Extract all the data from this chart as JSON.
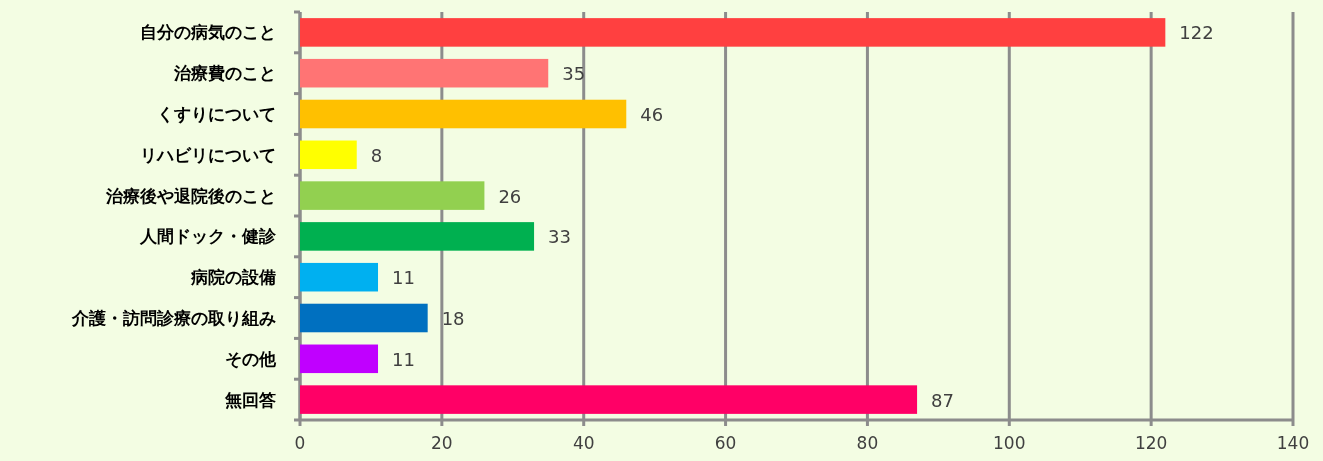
{
  "chart_data": {
    "type": "bar",
    "orientation": "horizontal",
    "categories": [
      "自分の病気のこと",
      "治療費のこと",
      "くすりについて",
      "リハビリについて",
      "治療後や退院後のこと",
      "人間ドック・健診",
      "病院の設備",
      "介護・訪問診療の取り組み",
      "その他",
      "無回答"
    ],
    "values": [
      122,
      35,
      46,
      8,
      26,
      33,
      11,
      18,
      11,
      87
    ],
    "colors": [
      "#ff4040",
      "#ff7474",
      "#ffc000",
      "#ffff00",
      "#92d050",
      "#00b050",
      "#00b0f0",
      "#0070c0",
      "#c000ff",
      "#ff0066"
    ],
    "xlim": [
      0,
      140
    ],
    "xticks": [
      0,
      20,
      40,
      60,
      80,
      100,
      120,
      140
    ],
    "grid": "x",
    "data_labels": true
  }
}
